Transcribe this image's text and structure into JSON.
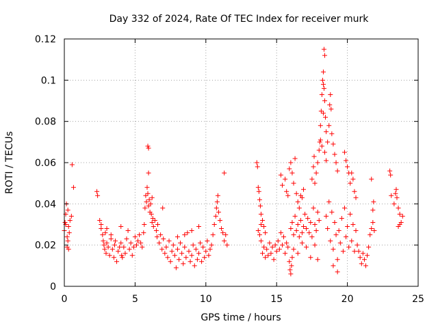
{
  "chart_data": {
    "type": "scatter",
    "title": "Day 332 of 2024, Rate Of TEC Index for receiver murk",
    "xlabel": "GPS time / hours",
    "ylabel": "ROTI / TECUs",
    "xlim": [
      0,
      25
    ],
    "ylim": [
      0,
      0.12
    ],
    "xticks": [
      "0",
      "5",
      "10",
      "15",
      "20",
      "25"
    ],
    "yticks": [
      "0",
      "0.02",
      "0.04",
      "0.06",
      "0.08",
      "0.1",
      "0.12"
    ],
    "grid": true,
    "marker": "plus",
    "color": "#ff0000",
    "series": [
      {
        "points": [
          [
            0.0,
            0.027
          ],
          [
            0.05,
            0.031
          ],
          [
            0.1,
            0.035
          ],
          [
            0.15,
            0.04
          ],
          [
            0.2,
            0.024
          ],
          [
            0.25,
            0.022
          ],
          [
            0.3,
            0.029
          ],
          [
            0.35,
            0.026
          ],
          [
            0.1,
            0.03
          ],
          [
            0.2,
            0.019
          ],
          [
            0.3,
            0.018
          ],
          [
            0.4,
            0.032
          ],
          [
            0.5,
            0.034
          ],
          [
            0.25,
            0.037
          ],
          [
            0.55,
            0.059
          ],
          [
            0.65,
            0.048
          ],
          [
            2.3,
            0.046
          ],
          [
            2.35,
            0.044
          ],
          [
            2.5,
            0.032
          ],
          [
            2.6,
            0.028
          ],
          [
            2.7,
            0.025
          ],
          [
            2.75,
            0.022
          ],
          [
            2.8,
            0.02
          ],
          [
            2.85,
            0.018
          ],
          [
            2.9,
            0.026
          ],
          [
            2.95,
            0.016
          ],
          [
            3.0,
            0.021
          ],
          [
            3.1,
            0.019
          ],
          [
            3.2,
            0.015
          ],
          [
            3.3,
            0.023
          ],
          [
            3.4,
            0.018
          ],
          [
            3.5,
            0.014
          ],
          [
            3.55,
            0.02
          ],
          [
            3.6,
            0.022
          ],
          [
            3.7,
            0.012
          ],
          [
            3.8,
            0.017
          ],
          [
            3.9,
            0.019
          ],
          [
            4.0,
            0.021
          ],
          [
            4.05,
            0.015
          ],
          [
            4.1,
            0.014
          ],
          [
            4.2,
            0.019
          ],
          [
            4.3,
            0.016
          ],
          [
            4.4,
            0.023
          ],
          [
            4.5,
            0.027
          ],
          [
            4.6,
            0.018
          ],
          [
            4.7,
            0.021
          ],
          [
            4.8,
            0.015
          ],
          [
            4.9,
            0.019
          ],
          [
            5.0,
            0.024
          ],
          [
            5.1,
            0.02
          ],
          [
            5.2,
            0.022
          ],
          [
            5.3,
            0.025
          ],
          [
            5.4,
            0.021
          ],
          [
            5.5,
            0.019
          ],
          [
            5.6,
            0.026
          ],
          [
            3.0,
            0.028
          ],
          [
            3.3,
            0.025
          ],
          [
            4.0,
            0.029
          ],
          [
            2.6,
            0.03
          ],
          [
            5.65,
            0.03
          ],
          [
            5.7,
            0.038
          ],
          [
            5.75,
            0.044
          ],
          [
            5.8,
            0.041
          ],
          [
            5.85,
            0.048
          ],
          [
            5.9,
            0.045
          ],
          [
            5.95,
            0.039
          ],
          [
            6.0,
            0.042
          ],
          [
            6.05,
            0.036
          ],
          [
            6.1,
            0.04
          ],
          [
            6.15,
            0.035
          ],
          [
            6.2,
            0.043
          ],
          [
            6.25,
            0.033
          ],
          [
            5.9,
            0.068
          ],
          [
            5.95,
            0.067
          ],
          [
            5.95,
            0.055
          ],
          [
            6.2,
            0.031
          ],
          [
            6.3,
            0.029
          ],
          [
            6.4,
            0.032
          ],
          [
            6.5,
            0.027
          ],
          [
            6.55,
            0.024
          ],
          [
            6.6,
            0.03
          ],
          [
            6.7,
            0.021
          ],
          [
            6.8,
            0.025
          ],
          [
            6.9,
            0.018
          ],
          [
            7.0,
            0.023
          ],
          [
            6.95,
            0.038
          ],
          [
            7.1,
            0.016
          ],
          [
            7.2,
            0.019
          ],
          [
            7.3,
            0.014
          ],
          [
            7.4,
            0.022
          ],
          [
            7.5,
            0.012
          ],
          [
            7.6,
            0.017
          ],
          [
            7.7,
            0.02
          ],
          [
            7.8,
            0.015
          ],
          [
            7.9,
            0.009
          ],
          [
            8.0,
            0.018
          ],
          [
            8.1,
            0.013
          ],
          [
            8.2,
            0.021
          ],
          [
            8.3,
            0.016
          ],
          [
            8.4,
            0.011
          ],
          [
            8.5,
            0.019
          ],
          [
            8.6,
            0.014
          ],
          [
            8.7,
            0.026
          ],
          [
            8.8,
            0.017
          ],
          [
            8.9,
            0.012
          ],
          [
            9.0,
            0.015
          ],
          [
            9.1,
            0.02
          ],
          [
            9.2,
            0.01
          ],
          [
            9.3,
            0.018
          ],
          [
            9.4,
            0.013
          ],
          [
            9.5,
            0.016
          ],
          [
            9.6,
            0.021
          ],
          [
            9.7,
            0.012
          ],
          [
            9.8,
            0.019
          ],
          [
            9.9,
            0.014
          ],
          [
            10.0,
            0.017
          ],
          [
            10.1,
            0.022
          ],
          [
            10.2,
            0.015
          ],
          [
            10.3,
            0.018
          ],
          [
            10.4,
            0.02
          ],
          [
            8.0,
            0.024
          ],
          [
            8.5,
            0.025
          ],
          [
            9.0,
            0.027
          ],
          [
            9.5,
            0.029
          ],
          [
            10.5,
            0.025
          ],
          [
            10.6,
            0.03
          ],
          [
            10.7,
            0.034
          ],
          [
            10.75,
            0.038
          ],
          [
            10.8,
            0.041
          ],
          [
            10.85,
            0.044
          ],
          [
            10.9,
            0.036
          ],
          [
            11.0,
            0.032
          ],
          [
            11.1,
            0.028
          ],
          [
            11.2,
            0.026
          ],
          [
            11.3,
            0.022
          ],
          [
            11.4,
            0.025
          ],
          [
            11.5,
            0.02
          ],
          [
            11.3,
            0.055
          ],
          [
            13.6,
            0.06
          ],
          [
            13.65,
            0.058
          ],
          [
            13.7,
            0.048
          ],
          [
            13.75,
            0.046
          ],
          [
            13.8,
            0.042
          ],
          [
            13.85,
            0.039
          ],
          [
            13.9,
            0.035
          ],
          [
            13.7,
            0.027
          ],
          [
            13.8,
            0.025
          ],
          [
            13.9,
            0.03
          ],
          [
            14.0,
            0.032
          ],
          [
            14.1,
            0.029
          ],
          [
            14.2,
            0.026
          ],
          [
            13.9,
            0.022
          ],
          [
            14.0,
            0.016
          ],
          [
            14.1,
            0.019
          ],
          [
            14.2,
            0.014
          ],
          [
            14.3,
            0.018
          ],
          [
            14.4,
            0.015
          ],
          [
            14.5,
            0.021
          ],
          [
            14.6,
            0.016
          ],
          [
            14.7,
            0.019
          ],
          [
            14.8,
            0.013
          ],
          [
            14.9,
            0.02
          ],
          [
            15.0,
            0.017
          ],
          [
            15.1,
            0.022
          ],
          [
            15.2,
            0.018
          ],
          [
            15.3,
            0.026
          ],
          [
            15.4,
            0.02
          ],
          [
            15.5,
            0.024
          ],
          [
            15.6,
            0.016
          ],
          [
            15.7,
            0.021
          ],
          [
            15.8,
            0.019
          ],
          [
            15.9,
            0.012
          ],
          [
            15.95,
            0.008
          ],
          [
            16.0,
            0.006
          ],
          [
            16.05,
            0.01
          ],
          [
            16.1,
            0.014
          ],
          [
            15.3,
            0.054
          ],
          [
            15.4,
            0.049
          ],
          [
            15.6,
            0.052
          ],
          [
            15.7,
            0.046
          ],
          [
            15.8,
            0.044
          ],
          [
            15.9,
            0.057
          ],
          [
            16.0,
            0.06
          ],
          [
            16.1,
            0.055
          ],
          [
            16.2,
            0.05
          ],
          [
            16.3,
            0.062
          ],
          [
            16.4,
            0.045
          ],
          [
            16.5,
            0.041
          ],
          [
            16.6,
            0.038
          ],
          [
            16.7,
            0.044
          ],
          [
            16.8,
            0.043
          ],
          [
            16.9,
            0.047
          ],
          [
            16.0,
            0.028
          ],
          [
            16.1,
            0.031
          ],
          [
            16.2,
            0.025
          ],
          [
            16.3,
            0.034
          ],
          [
            16.4,
            0.027
          ],
          [
            16.5,
            0.03
          ],
          [
            16.6,
            0.024
          ],
          [
            16.7,
            0.032
          ],
          [
            16.8,
            0.026
          ],
          [
            16.9,
            0.029
          ],
          [
            17.0,
            0.035
          ],
          [
            17.1,
            0.028
          ],
          [
            17.2,
            0.033
          ],
          [
            17.3,
            0.026
          ],
          [
            17.4,
            0.031
          ],
          [
            17.5,
            0.024
          ],
          [
            17.6,
            0.038
          ],
          [
            17.7,
            0.03
          ],
          [
            17.8,
            0.027
          ],
          [
            17.9,
            0.036
          ],
          [
            18.0,
            0.032
          ],
          [
            16.2,
            0.018
          ],
          [
            16.5,
            0.016
          ],
          [
            16.8,
            0.021
          ],
          [
            17.1,
            0.019
          ],
          [
            17.4,
            0.014
          ],
          [
            17.7,
            0.02
          ],
          [
            17.9,
            0.013
          ],
          [
            17.5,
            0.052
          ],
          [
            17.6,
            0.058
          ],
          [
            17.65,
            0.063
          ],
          [
            17.7,
            0.05
          ],
          [
            17.8,
            0.055
          ],
          [
            17.9,
            0.06
          ],
          [
            18.0,
            0.066
          ],
          [
            18.05,
            0.07
          ],
          [
            18.1,
            0.078
          ],
          [
            18.15,
            0.085
          ],
          [
            18.2,
            0.093
          ],
          [
            18.25,
            0.1
          ],
          [
            18.3,
            0.104
          ],
          [
            18.35,
            0.115
          ],
          [
            18.4,
            0.112
          ],
          [
            18.3,
            0.098
          ],
          [
            18.35,
            0.096
          ],
          [
            18.4,
            0.09
          ],
          [
            18.45,
            0.082
          ],
          [
            18.5,
            0.075
          ],
          [
            18.3,
            0.084
          ],
          [
            18.1,
            0.071
          ],
          [
            18.2,
            0.068
          ],
          [
            18.4,
            0.065
          ],
          [
            18.5,
            0.061
          ],
          [
            18.6,
            0.07
          ],
          [
            18.7,
            0.078
          ],
          [
            18.75,
            0.088
          ],
          [
            18.8,
            0.093
          ],
          [
            18.85,
            0.086
          ],
          [
            18.9,
            0.074
          ],
          [
            19.0,
            0.069
          ],
          [
            19.1,
            0.064
          ],
          [
            19.2,
            0.06
          ],
          [
            19.3,
            0.056
          ],
          [
            18.5,
            0.034
          ],
          [
            18.6,
            0.028
          ],
          [
            18.7,
            0.041
          ],
          [
            18.8,
            0.022
          ],
          [
            18.9,
            0.036
          ],
          [
            19.0,
            0.018
          ],
          [
            19.1,
            0.031
          ],
          [
            19.2,
            0.025
          ],
          [
            19.3,
            0.013
          ],
          [
            19.4,
            0.027
          ],
          [
            19.5,
            0.021
          ],
          [
            19.6,
            0.033
          ],
          [
            19.7,
            0.017
          ],
          [
            19.8,
            0.038
          ],
          [
            19.9,
            0.024
          ],
          [
            20.0,
            0.029
          ],
          [
            20.1,
            0.019
          ],
          [
            20.2,
            0.035
          ],
          [
            20.3,
            0.022
          ],
          [
            20.4,
            0.03
          ],
          [
            20.5,
            0.017
          ],
          [
            20.6,
            0.027
          ],
          [
            19.3,
            0.007
          ],
          [
            19.0,
            0.01
          ],
          [
            19.8,
            0.065
          ],
          [
            19.9,
            0.061
          ],
          [
            20.0,
            0.058
          ],
          [
            20.1,
            0.055
          ],
          [
            20.2,
            0.05
          ],
          [
            20.3,
            0.055
          ],
          [
            20.4,
            0.052
          ],
          [
            20.5,
            0.046
          ],
          [
            20.6,
            0.043
          ],
          [
            20.7,
            0.02
          ],
          [
            20.8,
            0.017
          ],
          [
            20.9,
            0.014
          ],
          [
            21.0,
            0.011
          ],
          [
            21.1,
            0.016
          ],
          [
            21.2,
            0.013
          ],
          [
            21.3,
            0.01
          ],
          [
            21.4,
            0.015
          ],
          [
            21.5,
            0.019
          ],
          [
            21.6,
            0.025
          ],
          [
            21.7,
            0.028
          ],
          [
            21.8,
            0.031
          ],
          [
            21.9,
            0.027
          ],
          [
            21.8,
            0.037
          ],
          [
            21.85,
            0.041
          ],
          [
            21.7,
            0.052
          ],
          [
            23.0,
            0.056
          ],
          [
            23.05,
            0.054
          ],
          [
            23.1,
            0.044
          ],
          [
            23.3,
            0.04
          ],
          [
            23.4,
            0.045
          ],
          [
            23.45,
            0.047
          ],
          [
            23.5,
            0.043
          ],
          [
            23.6,
            0.038
          ],
          [
            23.7,
            0.035
          ],
          [
            23.8,
            0.031
          ],
          [
            23.9,
            0.034
          ],
          [
            23.6,
            0.029
          ],
          [
            23.7,
            0.03
          ]
        ]
      }
    ]
  }
}
